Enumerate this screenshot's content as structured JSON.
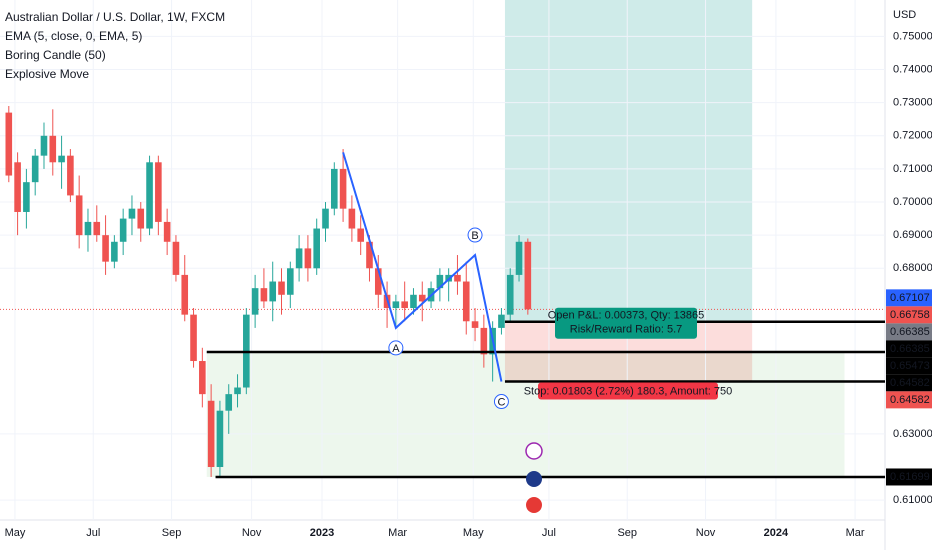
{
  "chart_data": {
    "type": "candlestick",
    "title": "Australian Dollar / U.S. Dollar, 1W, FXCM",
    "indicators": [
      "EMA (5, close, 0, EMA, 5)",
      "Boring Candle (50)",
      "Explosive Move"
    ],
    "currency": "USD",
    "up_color": "#26a69a",
    "down_color": "#ef5350",
    "x": [
      0,
      1,
      2,
      3,
      4,
      5,
      6,
      7,
      8,
      9,
      10,
      11,
      12,
      13,
      14,
      15,
      16,
      17,
      18,
      19,
      20,
      21,
      22,
      23,
      24,
      25,
      26,
      27,
      28,
      29,
      30,
      31,
      32,
      33,
      34,
      35,
      36,
      37,
      38,
      39,
      40,
      41,
      42,
      43,
      44,
      45,
      46,
      47,
      48,
      49,
      50,
      51,
      52,
      53,
      54,
      55,
      56,
      57,
      58,
      59
    ],
    "open": [
      0.727,
      0.712,
      0.697,
      0.706,
      0.714,
      0.72,
      0.712,
      0.714,
      0.702,
      0.69,
      0.694,
      0.69,
      0.682,
      0.688,
      0.695,
      0.698,
      0.692,
      0.712,
      0.694,
      0.688,
      0.678,
      0.666,
      0.652,
      0.64,
      0.62,
      0.637,
      0.642,
      0.644,
      0.666,
      0.674,
      0.67,
      0.676,
      0.672,
      0.68,
      0.686,
      0.68,
      0.692,
      0.698,
      0.71,
      0.698,
      0.692,
      0.688,
      0.68,
      0.672,
      0.668,
      0.67,
      0.668,
      0.672,
      0.67,
      0.674,
      0.676,
      0.678,
      0.676,
      0.664,
      0.662,
      0.654,
      0.662,
      0.666,
      0.678,
      0.688
    ],
    "high": [
      0.729,
      0.715,
      0.71,
      0.716,
      0.724,
      0.728,
      0.72,
      0.716,
      0.708,
      0.698,
      0.699,
      0.696,
      0.69,
      0.698,
      0.702,
      0.7,
      0.714,
      0.714,
      0.698,
      0.69,
      0.684,
      0.668,
      0.656,
      0.645,
      0.64,
      0.645,
      0.648,
      0.668,
      0.678,
      0.68,
      0.682,
      0.68,
      0.682,
      0.69,
      0.69,
      0.695,
      0.7,
      0.712,
      0.716,
      0.702,
      0.696,
      0.69,
      0.684,
      0.676,
      0.672,
      0.676,
      0.674,
      0.676,
      0.676,
      0.68,
      0.68,
      0.684,
      0.682,
      0.668,
      0.666,
      0.664,
      0.668,
      0.68,
      0.69,
      0.689
    ],
    "low": [
      0.706,
      0.69,
      0.692,
      0.702,
      0.71,
      0.708,
      0.704,
      0.7,
      0.686,
      0.685,
      0.688,
      0.678,
      0.68,
      0.684,
      0.69,
      0.688,
      0.69,
      0.69,
      0.684,
      0.676,
      0.664,
      0.65,
      0.638,
      0.617,
      0.617,
      0.63,
      0.638,
      0.642,
      0.662,
      0.668,
      0.664,
      0.666,
      0.668,
      0.676,
      0.676,
      0.678,
      0.688,
      0.696,
      0.694,
      0.688,
      0.684,
      0.676,
      0.668,
      0.662,
      0.662,
      0.664,
      0.666,
      0.664,
      0.668,
      0.67,
      0.67,
      0.672,
      0.66,
      0.658,
      0.65,
      0.6458,
      0.66,
      0.664,
      0.676,
      0.666
    ],
    "close": [
      0.708,
      0.697,
      0.706,
      0.714,
      0.72,
      0.712,
      0.714,
      0.702,
      0.69,
      0.694,
      0.69,
      0.682,
      0.688,
      0.695,
      0.698,
      0.692,
      0.712,
      0.694,
      0.688,
      0.678,
      0.666,
      0.652,
      0.642,
      0.62,
      0.637,
      0.642,
      0.644,
      0.666,
      0.674,
      0.67,
      0.676,
      0.672,
      0.68,
      0.686,
      0.68,
      0.692,
      0.698,
      0.71,
      0.698,
      0.692,
      0.688,
      0.68,
      0.672,
      0.668,
      0.67,
      0.668,
      0.672,
      0.67,
      0.674,
      0.678,
      0.678,
      0.676,
      0.664,
      0.662,
      0.654,
      0.662,
      0.666,
      0.678,
      0.688,
      0.6676
    ],
    "xlim": [
      -1,
      99.6
    ],
    "xticks": [
      {
        "value": 0.7,
        "label": "May"
      },
      {
        "value": 9.6,
        "label": "Jul"
      },
      {
        "value": 18.5,
        "label": "Sep"
      },
      {
        "value": 27.6,
        "label": "Nov"
      },
      {
        "value": 35.6,
        "label": "2023"
      },
      {
        "value": 44.2,
        "label": "Mar"
      },
      {
        "value": 52.8,
        "label": "May"
      },
      {
        "value": 61.4,
        "label": "Jul"
      },
      {
        "value": 70.3,
        "label": "Sep"
      },
      {
        "value": 79.2,
        "label": "Nov"
      },
      {
        "value": 87.2,
        "label": "2024"
      },
      {
        "value": 96.2,
        "label": "Mar"
      }
    ],
    "ylim": [
      0.604,
      0.761
    ],
    "yticks": [
      {
        "value": 0.61,
        "label": "0.61000"
      },
      {
        "value": 0.63,
        "label": "0.63000"
      },
      {
        "value": 0.68,
        "label": "0.68000"
      },
      {
        "value": 0.69,
        "label": "0.69000"
      },
      {
        "value": 0.7,
        "label": "0.70000"
      },
      {
        "value": 0.71,
        "label": "0.71000"
      },
      {
        "value": 0.72,
        "label": "0.72000"
      },
      {
        "value": 0.73,
        "label": "0.73000"
      },
      {
        "value": 0.74,
        "label": "0.74000"
      },
      {
        "value": 0.75,
        "label": "0.75000"
      }
    ],
    "levels": [
      0.66385,
      0.65473,
      0.64582,
      0.61699
    ],
    "current_price": 0.66758,
    "pattern": [
      {
        "label": null,
        "x": 38,
        "value": 0.715
      },
      {
        "label": "A",
        "x": 44,
        "value": 0.662
      },
      {
        "label": "B",
        "x": 53,
        "value": 0.684
      },
      {
        "label": "C",
        "x": 56,
        "value": 0.6458
      }
    ],
    "position": {
      "entry": 0.66385,
      "stop": 0.64582,
      "profit_text": "Open P&L: 0.00373, Qty: 13865",
      "ratio_text": "Risk/Reward Ratio: 5.7",
      "stop_text": "Stop: 0.01803 (2.72%) 180.3, Amount: 750"
    },
    "badges": [
      {
        "value": 0.67107,
        "color": "#2962ff"
      },
      {
        "value": 0.66758,
        "color": "#ef5350"
      },
      {
        "value": 0.66385,
        "color": "#787b86"
      },
      {
        "value": 0.66385,
        "color": "#000000"
      },
      {
        "value": 0.65473,
        "color": "#000000"
      },
      {
        "value": 0.64582,
        "color": "#000000"
      },
      {
        "value": 0.64582,
        "color": "#ef5350"
      },
      {
        "value": 0.61699,
        "color": "#000000"
      }
    ]
  }
}
